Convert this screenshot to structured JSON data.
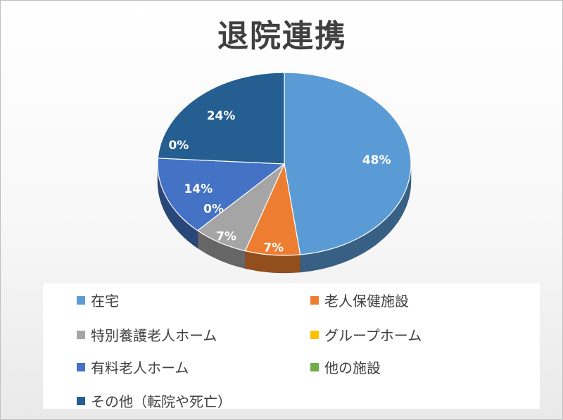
{
  "chart_data": {
    "type": "pie",
    "title": "退院連携",
    "categories": [
      "在宅",
      "老人保健施設",
      "特別養護老人ホーム",
      "グループホーム",
      "有料老人ホーム",
      "他の施設",
      "その他（転院や死亡）"
    ],
    "values": [
      48,
      7,
      7,
      0,
      14,
      0,
      24
    ],
    "data_labels": [
      "48%",
      "7%",
      "7%",
      "0%",
      "14%",
      "0%",
      "24%"
    ],
    "colors": [
      "#5B9BD5",
      "#ED7D31",
      "#A5A5A5",
      "#FFC000",
      "#4472C4",
      "#70AD47",
      "#255E91"
    ],
    "legend_position": "bottom",
    "style": "3d"
  }
}
